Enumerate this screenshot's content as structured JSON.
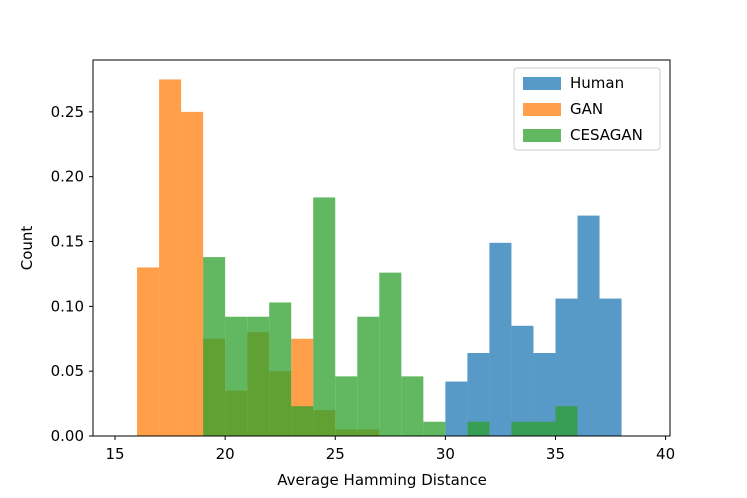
{
  "chart_data": {
    "type": "histogram",
    "title": "",
    "xlabel": "Average Hamming Distance",
    "ylabel": "Count",
    "xlim": [
      14,
      40.2
    ],
    "ylim": [
      0,
      0.29
    ],
    "xticks": [
      15,
      20,
      25,
      30,
      35,
      40
    ],
    "yticks": [
      0.0,
      0.05,
      0.1,
      0.15,
      0.2,
      0.25
    ],
    "ytick_labels": [
      "0.00",
      "0.05",
      "0.10",
      "0.15",
      "0.20",
      "0.25"
    ],
    "bin_width": 1,
    "legend_position": "top-right",
    "series": [
      {
        "name": "Human",
        "color": "#1f77b4",
        "opacity": 0.75,
        "bins": [
          {
            "x0": 30,
            "value": 0.042
          },
          {
            "x0": 31,
            "value": 0.064
          },
          {
            "x0": 32,
            "value": 0.149
          },
          {
            "x0": 33,
            "value": 0.085
          },
          {
            "x0": 34,
            "value": 0.064
          },
          {
            "x0": 35,
            "value": 0.106
          },
          {
            "x0": 36,
            "value": 0.17
          },
          {
            "x0": 37,
            "value": 0.106
          }
        ]
      },
      {
        "name": "GAN",
        "color": "#ff7f0e",
        "opacity": 0.75,
        "bins": [
          {
            "x0": 16,
            "value": 0.13
          },
          {
            "x0": 17,
            "value": 0.275
          },
          {
            "x0": 18,
            "value": 0.25
          },
          {
            "x0": 19,
            "value": 0.075
          },
          {
            "x0": 20,
            "value": 0.035
          },
          {
            "x0": 21,
            "value": 0.08
          },
          {
            "x0": 22,
            "value": 0.05
          },
          {
            "x0": 23,
            "value": 0.075
          },
          {
            "x0": 24,
            "value": 0.02
          },
          {
            "x0": 25,
            "value": 0.005
          },
          {
            "x0": 26,
            "value": 0.005
          }
        ]
      },
      {
        "name": "CESAGAN",
        "color": "#2ca02c",
        "opacity": 0.75,
        "bins": [
          {
            "x0": 19,
            "value": 0.138
          },
          {
            "x0": 20,
            "value": 0.092
          },
          {
            "x0": 21,
            "value": 0.092
          },
          {
            "x0": 22,
            "value": 0.103
          },
          {
            "x0": 23,
            "value": 0.023
          },
          {
            "x0": 24,
            "value": 0.184
          },
          {
            "x0": 25,
            "value": 0.046
          },
          {
            "x0": 26,
            "value": 0.092
          },
          {
            "x0": 27,
            "value": 0.126
          },
          {
            "x0": 28,
            "value": 0.046
          },
          {
            "x0": 29,
            "value": 0.011
          },
          {
            "x0": 31,
            "value": 0.011
          },
          {
            "x0": 33,
            "value": 0.011
          },
          {
            "x0": 34,
            "value": 0.011
          },
          {
            "x0": 35,
            "value": 0.023
          }
        ]
      }
    ]
  }
}
